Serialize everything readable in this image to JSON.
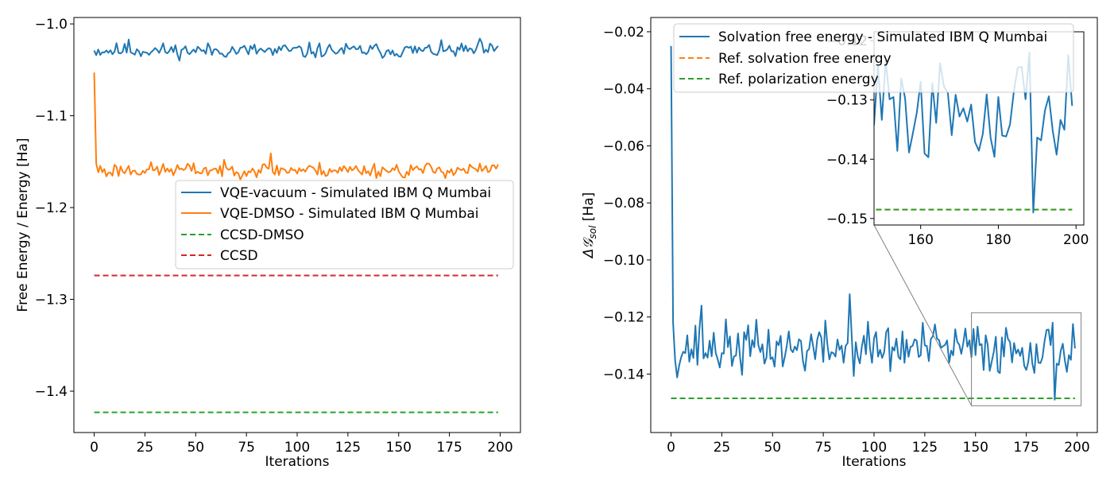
{
  "chart_data": [
    {
      "type": "line",
      "id": "left",
      "xlabel": "Iterations",
      "ylabel": "Free Energy / Energy [Ha]",
      "xlim": [
        -10,
        210
      ],
      "ylim": [
        -1.445,
        -0.993
      ],
      "xticks": [
        0,
        25,
        50,
        75,
        100,
        125,
        150,
        175,
        200
      ],
      "yticks": [
        -1.4,
        -1.3,
        -1.2,
        -1.1,
        -1.0
      ],
      "ytick_labels": [
        "−1.4",
        "−1.3",
        "−1.2",
        "−1.1",
        "−1.0"
      ],
      "legend_position": "center-right",
      "series": [
        {
          "name": "VQE-vacuum - Simulated IBM Q Mumbai",
          "color": "#1f77b4",
          "dashed": false,
          "base": -1.029,
          "noise": 0.004,
          "seed": 11,
          "points": [
            [
              0,
              -1.029
            ],
            [
              17,
              -1.017
            ],
            [
              88,
              -1.034
            ],
            [
              104,
              -1.036
            ],
            [
              190,
              -1.016
            ],
            [
              199,
              -1.024
            ]
          ],
          "n": 200
        },
        {
          "name": "VQE-DMSO - Simulated IBM Q Mumbai",
          "color": "#ff7f0e",
          "dashed": false,
          "base": -1.159,
          "noise": 0.004,
          "seed": 23,
          "points": [
            [
              0,
              -1.053
            ],
            [
              1,
              -1.152
            ],
            [
              6,
              -1.166
            ],
            [
              87,
              -1.141
            ],
            [
              152,
              -1.167
            ],
            [
              199,
              -1.153
            ]
          ],
          "n": 200
        },
        {
          "name": "CCSD-DMSO",
          "color": "#2ca02c",
          "dashed": true,
          "constant": -1.423,
          "n": 200
        },
        {
          "name": "CCSD",
          "color": "#d62728",
          "dashed": true,
          "constant": -1.274,
          "n": 200
        }
      ]
    },
    {
      "type": "line",
      "id": "right",
      "xlabel": "Iterations",
      "ylabel": "Δ𝒢sol [Ha]",
      "ylabel_main": "Δ𝒢",
      "ylabel_sub": "sol",
      "ylabel_unit": " [Ha]",
      "xlim": [
        -10,
        210
      ],
      "ylim": [
        -0.1605,
        -0.015
      ],
      "xticks": [
        0,
        25,
        50,
        75,
        100,
        125,
        150,
        175,
        200
      ],
      "yticks": [
        -0.14,
        -0.12,
        -0.1,
        -0.08,
        -0.06,
        -0.04,
        -0.02
      ],
      "ytick_labels": [
        "−0.14",
        "−0.12",
        "−0.10",
        "−0.08",
        "−0.06",
        "−0.04",
        "−0.02"
      ],
      "legend_position": "top",
      "series": [
        {
          "name": "Solvation free energy - Simulated IBM Q Mumbai",
          "color": "#1f77b4",
          "dashed": false,
          "base": -0.131,
          "noise": 0.0045,
          "seed": 37,
          "points": [
            [
              0,
              -0.025
            ],
            [
              1,
              -0.122
            ],
            [
              4,
              -0.137
            ],
            [
              15,
              -0.116
            ],
            [
              88,
              -0.112
            ],
            [
              189,
              -0.149
            ],
            [
              199,
              -0.131
            ]
          ],
          "n": 200
        },
        {
          "name": "Ref. solvation free energy",
          "color": "#ff7f0e",
          "dashed": true,
          "constant": -0.1485,
          "n": 200
        },
        {
          "name": "Ref. polarization energy",
          "color": "#2ca02c",
          "dashed": true,
          "constant": -0.1485,
          "n": 200
        }
      ],
      "inset": {
        "xlim": [
          148,
          202
        ],
        "ylim": [
          -0.1511,
          -0.1185
        ],
        "xticks": [
          160,
          180,
          200
        ],
        "yticks": [
          -0.15,
          -0.14,
          -0.13,
          -0.12
        ],
        "ytick_labels": [
          "−0.15",
          "−0.14",
          "−0.13",
          "−0.12"
        ]
      }
    }
  ]
}
